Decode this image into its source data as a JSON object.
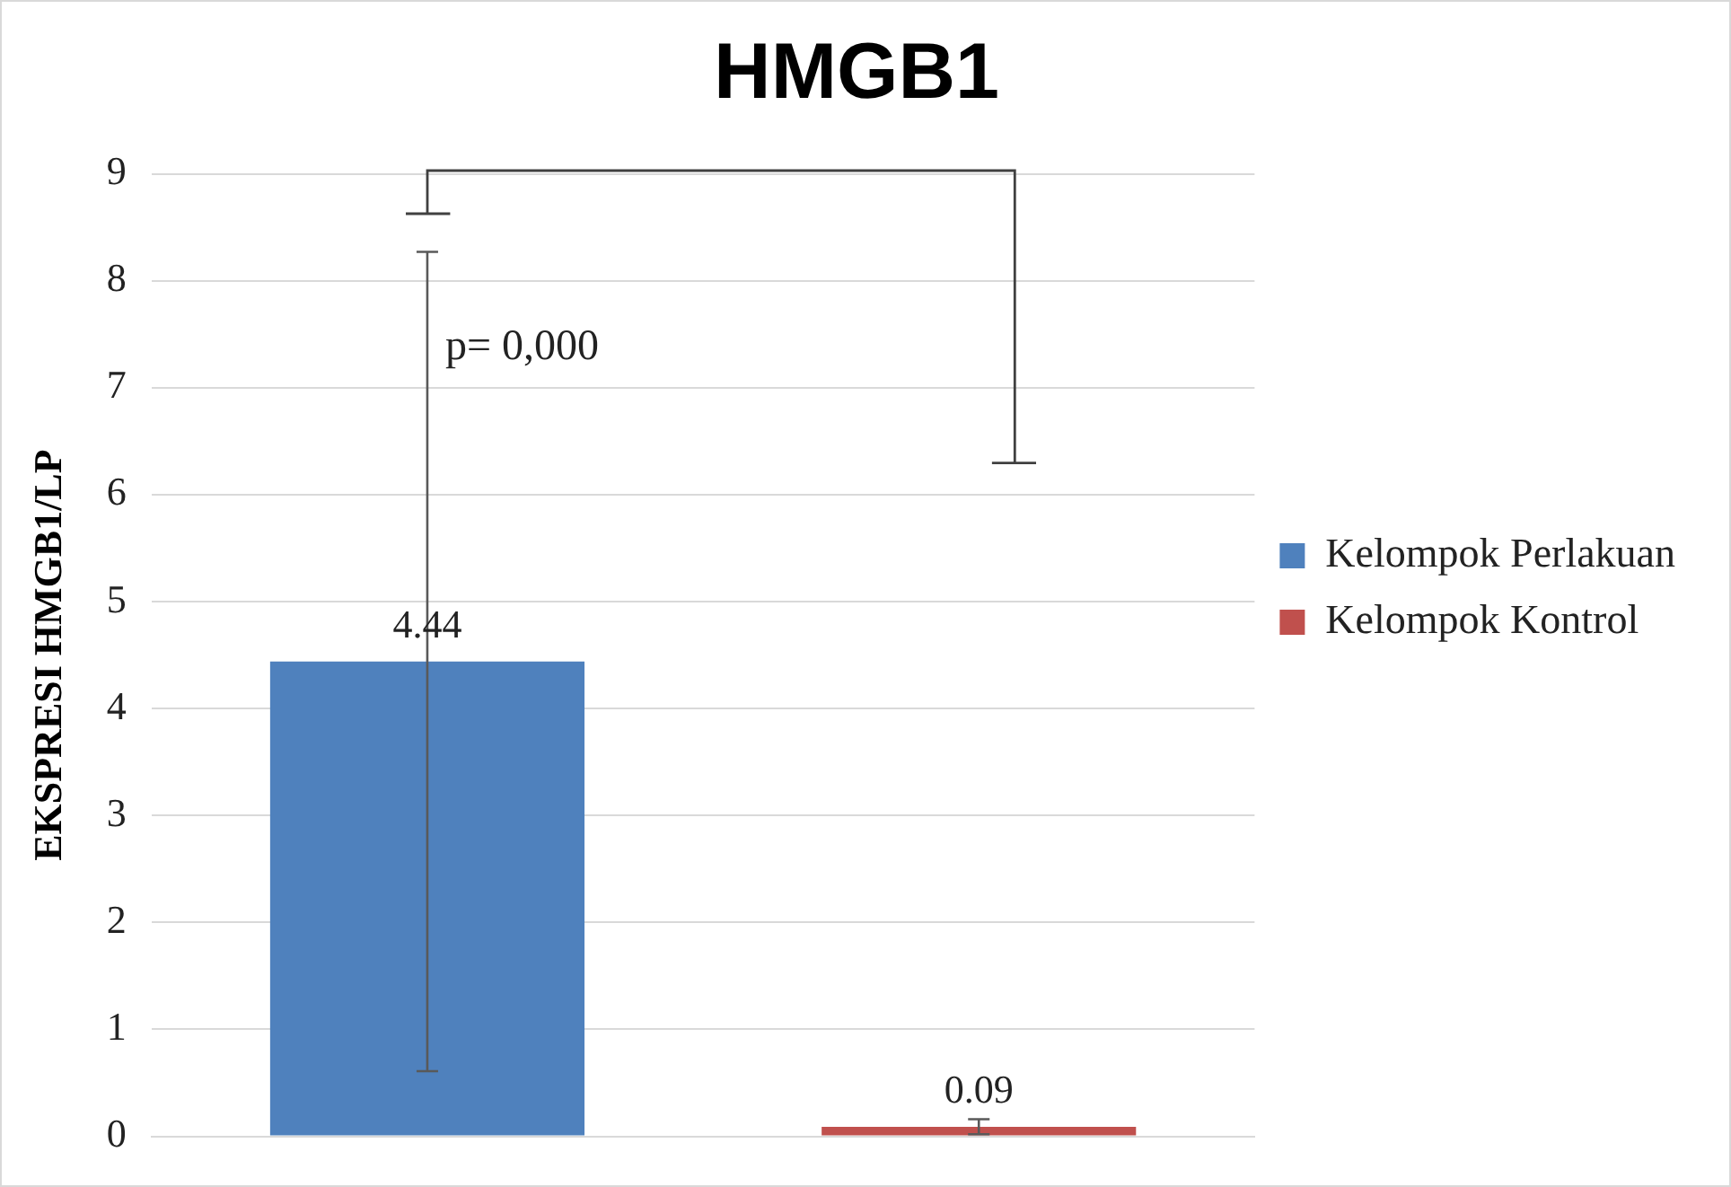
{
  "chart_data": {
    "type": "bar",
    "title": "HMGB1",
    "ylabel": "EKSPRESI HMGB1/LP",
    "categories": [
      null
    ],
    "series": [
      {
        "name": "Kelompok Perlakuan",
        "color": "#4f81bd",
        "values": [
          4.44
        ],
        "errors": [
          3.83
        ]
      },
      {
        "name": "Kelompok Kontrol",
        "color": "#c0504d",
        "values": [
          0.09
        ],
        "errors": [
          0.07
        ]
      }
    ],
    "ylim": [
      0,
      9
    ],
    "yticks": [
      0,
      1,
      2,
      3,
      4,
      5,
      6,
      7,
      8,
      9
    ],
    "grid": "y",
    "legend": "right",
    "data_labels": true,
    "annotations": [
      "p= 0,000"
    ]
  }
}
